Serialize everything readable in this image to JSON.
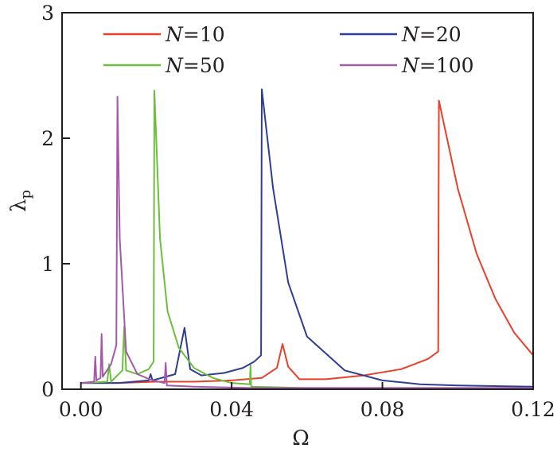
{
  "chart_data": {
    "type": "line",
    "title": "",
    "xlabel": "Ω",
    "ylabel": "λp",
    "ylabel_main": "λ",
    "ylabel_sub": "p",
    "xlim": [
      -0.005,
      0.12
    ],
    "ylim": [
      0,
      3
    ],
    "xticks": [
      "0.00",
      "0.04",
      "0.08",
      "0.12"
    ],
    "yticks": [
      "0",
      "1",
      "2",
      "3"
    ],
    "grid": false,
    "legend_position": "upper (two columns inside plot)",
    "series": [
      {
        "name": "N=10",
        "label_var": "N",
        "label_val": "10",
        "color": "#e8402a",
        "x": [
          0.0,
          0.01,
          0.02,
          0.03,
          0.04,
          0.048,
          0.052,
          0.0535,
          0.055,
          0.058,
          0.065,
          0.075,
          0.085,
          0.092,
          0.0948,
          0.095,
          0.1,
          0.105,
          0.11,
          0.115,
          0.12
        ],
        "values": [
          0.05,
          0.05,
          0.06,
          0.06,
          0.07,
          0.09,
          0.17,
          0.36,
          0.18,
          0.08,
          0.08,
          0.11,
          0.16,
          0.24,
          0.3,
          2.3,
          1.6,
          1.08,
          0.72,
          0.45,
          0.27
        ]
      },
      {
        "name": "N=20",
        "label_var": "N",
        "label_val": "20",
        "color": "#2f3d95",
        "x": [
          0.0,
          0.01,
          0.018,
          0.0185,
          0.019,
          0.025,
          0.0275,
          0.029,
          0.032,
          0.038,
          0.043,
          0.046,
          0.0478,
          0.048,
          0.051,
          0.055,
          0.06,
          0.07,
          0.08,
          0.09,
          0.1,
          0.12
        ],
        "values": [
          0.05,
          0.05,
          0.07,
          0.12,
          0.07,
          0.12,
          0.49,
          0.16,
          0.11,
          0.13,
          0.17,
          0.22,
          0.27,
          2.39,
          1.6,
          0.85,
          0.42,
          0.15,
          0.07,
          0.04,
          0.03,
          0.02
        ]
      },
      {
        "name": "N=50",
        "label_var": "N",
        "label_val": "50",
        "color": "#6cbf3a",
        "x": [
          0.0,
          0.007,
          0.0075,
          0.008,
          0.011,
          0.0115,
          0.012,
          0.015,
          0.018,
          0.0193,
          0.0195,
          0.021,
          0.023,
          0.026,
          0.03,
          0.035,
          0.04,
          0.0448,
          0.045,
          0.0452,
          0.06,
          0.12
        ],
        "values": [
          0.05,
          0.06,
          0.2,
          0.06,
          0.15,
          0.5,
          0.15,
          0.12,
          0.16,
          0.22,
          2.38,
          1.2,
          0.62,
          0.33,
          0.17,
          0.09,
          0.05,
          0.04,
          0.19,
          0.02,
          0.01,
          0.01
        ]
      },
      {
        "name": "N=100",
        "label_var": "N",
        "label_val": "100",
        "color": "#a35aa8",
        "x": [
          0.0,
          0.0035,
          0.0038,
          0.0041,
          0.0052,
          0.0055,
          0.0058,
          0.008,
          0.0094,
          0.0097,
          0.0103,
          0.012,
          0.015,
          0.019,
          0.0222,
          0.0225,
          0.0228,
          0.03,
          0.045,
          0.12
        ],
        "values": [
          0.05,
          0.06,
          0.26,
          0.07,
          0.09,
          0.44,
          0.1,
          0.2,
          0.35,
          2.33,
          1.2,
          0.3,
          0.12,
          0.07,
          0.05,
          0.21,
          0.03,
          0.02,
          0.01,
          0.01
        ]
      }
    ]
  }
}
